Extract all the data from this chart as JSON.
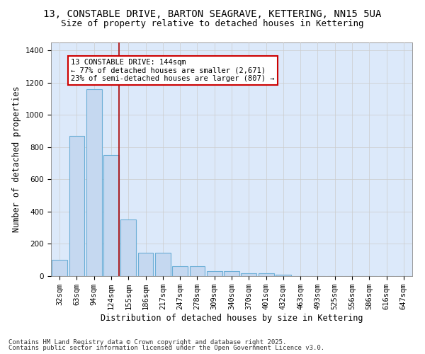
{
  "title1": "13, CONSTABLE DRIVE, BARTON SEAGRAVE, KETTERING, NN15 5UA",
  "title2": "Size of property relative to detached houses in Kettering",
  "xlabel": "Distribution of detached houses by size in Kettering",
  "ylabel": "Number of detached properties",
  "categories": [
    "32sqm",
    "63sqm",
    "94sqm",
    "124sqm",
    "155sqm",
    "186sqm",
    "217sqm",
    "247sqm",
    "278sqm",
    "309sqm",
    "340sqm",
    "370sqm",
    "401sqm",
    "432sqm",
    "463sqm",
    "493sqm",
    "525sqm",
    "556sqm",
    "586sqm",
    "616sqm",
    "647sqm"
  ],
  "values": [
    100,
    870,
    1160,
    750,
    350,
    145,
    145,
    60,
    60,
    30,
    30,
    18,
    18,
    7,
    0,
    0,
    0,
    0,
    0,
    0,
    0
  ],
  "bar_color": "#c5d8f0",
  "bar_edge_color": "#6baed6",
  "ref_line_label": "13 CONSTABLE DRIVE: 144sqm",
  "annotation_line1": "← 77% of detached houses are smaller (2,671)",
  "annotation_line2": "23% of semi-detached houses are larger (807) →",
  "annotation_box_color": "#ffffff",
  "annotation_box_edge_color": "#cc0000",
  "ref_line_color": "#aa0000",
  "grid_color": "#cccccc",
  "background_color": "#dce9fa",
  "ylim": [
    0,
    1450
  ],
  "yticks": [
    0,
    200,
    400,
    600,
    800,
    1000,
    1200,
    1400
  ],
  "footer1": "Contains HM Land Registry data © Crown copyright and database right 2025.",
  "footer2": "Contains public sector information licensed under the Open Government Licence v3.0.",
  "title1_fontsize": 10,
  "title2_fontsize": 9,
  "xlabel_fontsize": 8.5,
  "ylabel_fontsize": 8.5,
  "tick_fontsize": 7.5,
  "annotation_fontsize": 7.5,
  "footer_fontsize": 6.5
}
